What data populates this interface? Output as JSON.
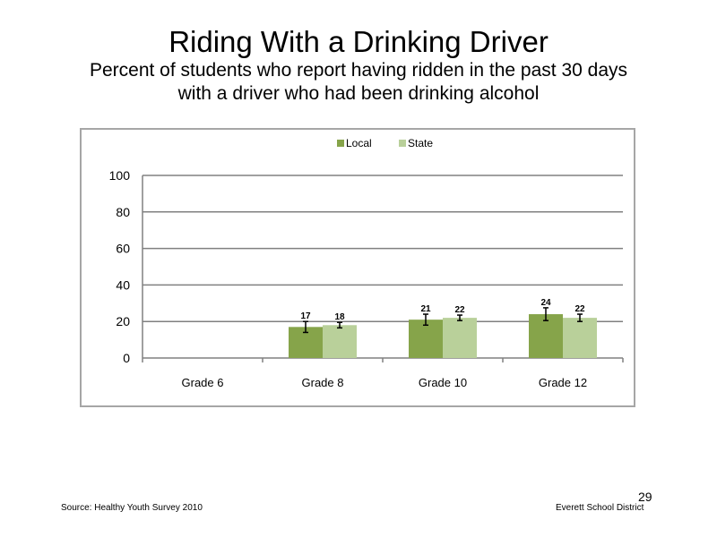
{
  "slide": {
    "title": "Riding With a Drinking Driver",
    "subtitle_line1": "Percent of students who report having ridden in the past 30 days",
    "subtitle_line2": "with a driver who had been drinking alcohol",
    "source": "Source: Healthy Youth Survey 2010",
    "organization": "Everett School District",
    "page_number": "29"
  },
  "colors": {
    "local": "#86a44a",
    "state": "#b9d09a",
    "grid": "#808080",
    "error_bar": "#000000"
  },
  "chart_data": {
    "type": "bar",
    "title": "",
    "xlabel": "",
    "ylabel": "",
    "categories": [
      "Grade 6",
      "Grade 8",
      "Grade 10",
      "Grade 12"
    ],
    "ylim": [
      0,
      100
    ],
    "yticks": [
      0,
      20,
      40,
      60,
      80,
      100
    ],
    "grid": true,
    "legend_position": "top-center",
    "series": [
      {
        "name": "Local",
        "values": [
          null,
          17,
          21,
          24
        ],
        "labels": [
          "",
          "17",
          "21",
          "24"
        ],
        "error": [
          null,
          3,
          3,
          3.5
        ]
      },
      {
        "name": "State",
        "values": [
          null,
          18,
          22,
          22
        ],
        "labels": [
          "",
          "18",
          "22",
          "22"
        ],
        "error": [
          null,
          1.5,
          1.5,
          2
        ]
      }
    ]
  }
}
